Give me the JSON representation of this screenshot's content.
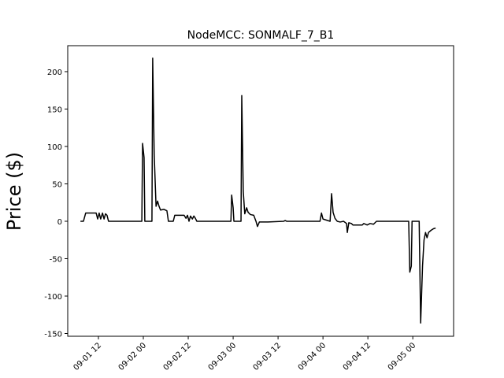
{
  "chart_data": {
    "type": "line",
    "title": "NodeMCC: SONMALF_7_B1",
    "y_label": "Price ($)",
    "x": [
      7.2,
      8.0,
      8.6,
      11.4,
      11.8,
      12.2,
      12.6,
      13.1,
      13.5,
      13.9,
      14.3,
      14.7,
      23.6,
      23.8,
      24.2,
      24.4,
      26.3,
      26.5,
      26.9,
      27.4,
      27.8,
      28.2,
      28.6,
      29.5,
      30.3,
      30.7,
      32.0,
      32.4,
      34.9,
      35.4,
      35.8,
      36.2,
      36.6,
      37.1,
      37.5,
      37.9,
      38.3,
      47.4,
      47.6,
      48.0,
      48.2,
      50.1,
      50.3,
      50.7,
      51.1,
      51.6,
      52.0,
      52.6,
      53.5,
      54.1,
      54.5,
      55.0,
      57.3,
      61.5,
      61.9,
      62.3,
      71.2,
      71.6,
      72.0,
      73.9,
      74.3,
      74.7,
      75.2,
      75.8,
      76.6,
      77.5,
      78.3,
      78.5,
      78.9,
      79.6,
      80.0,
      82.5,
      82.9,
      83.8,
      84.6,
      85.5,
      86.3,
      94.9,
      95.2,
      95.6,
      95.8,
      97.7,
      98.1,
      98.6,
      99.0,
      99.4,
      99.8,
      100.2,
      100.9,
      101.5,
      102.1
    ],
    "series": [
      {
        "color": "#000000",
        "values": [
          0,
          0,
          11,
          11,
          3,
          11,
          3,
          11,
          3,
          10,
          8,
          0,
          0,
          104,
          85,
          0,
          0,
          218,
          90,
          20,
          27,
          20,
          15,
          16,
          14,
          0,
          0,
          8,
          8,
          4,
          8,
          0,
          7,
          3,
          7,
          4,
          0,
          0,
          35,
          18,
          0,
          0,
          168,
          40,
          10,
          18,
          12,
          9,
          8,
          0,
          -7,
          -1,
          -1,
          0,
          1,
          0,
          0,
          11,
          3,
          0,
          37,
          12,
          4,
          0,
          -1,
          0,
          -3,
          -15,
          -2,
          -3,
          -5,
          -5,
          -3,
          -5,
          -3,
          -4,
          0,
          0,
          -68,
          -60,
          0,
          0,
          -136,
          -60,
          -25,
          -15,
          -22,
          -15,
          -12,
          -10,
          -9
        ]
      }
    ],
    "xlim": [
      3.8,
      106.9
    ],
    "xticks": [
      {
        "value": 12,
        "label": "09-01 12"
      },
      {
        "value": 24,
        "label": "09-02 00"
      },
      {
        "value": 36,
        "label": "09-02 12"
      },
      {
        "value": 48,
        "label": "09-03 00"
      },
      {
        "value": 60,
        "label": "09-03 12"
      },
      {
        "value": 72,
        "label": "09-04 00"
      },
      {
        "value": 84,
        "label": "09-04 12"
      },
      {
        "value": 96,
        "label": "09-05 00"
      }
    ],
    "ylim": [
      -153.7,
      234.7
    ],
    "yticks": [
      -150,
      -100,
      -50,
      0,
      50,
      100,
      150,
      200
    ]
  }
}
